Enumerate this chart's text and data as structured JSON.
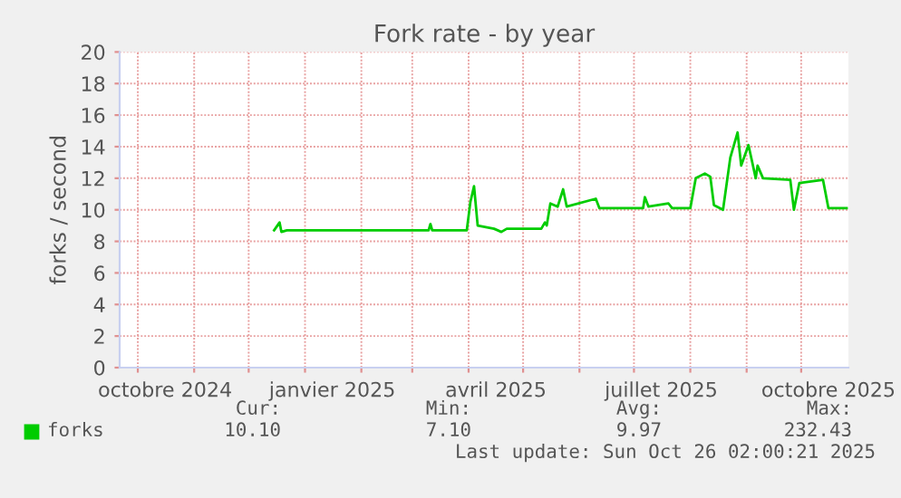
{
  "chart_data": {
    "type": "line",
    "title": "Fork rate - by year",
    "ylabel": "forks / second",
    "xlim": [
      "2024-09-21",
      "2025-10-27"
    ],
    "xticks": [
      {
        "value": "2024-10-01",
        "label": null
      },
      {
        "value": "2024-10-16",
        "label": "octobre 2024"
      },
      {
        "value": "2024-11-01",
        "label": null
      },
      {
        "value": "2024-12-01",
        "label": null
      },
      {
        "value": "2025-01-01",
        "label": null
      },
      {
        "value": "2025-01-16",
        "label": "janvier 2025"
      },
      {
        "value": "2025-02-01",
        "label": null
      },
      {
        "value": "2025-03-01",
        "label": null
      },
      {
        "value": "2025-04-01",
        "label": null
      },
      {
        "value": "2025-04-16",
        "label": "avril 2025"
      },
      {
        "value": "2025-05-01",
        "label": null
      },
      {
        "value": "2025-06-01",
        "label": null
      },
      {
        "value": "2025-07-01",
        "label": null
      },
      {
        "value": "2025-07-16",
        "label": "juillet 2025"
      },
      {
        "value": "2025-08-01",
        "label": null
      },
      {
        "value": "2025-09-01",
        "label": null
      },
      {
        "value": "2025-10-01",
        "label": null
      },
      {
        "value": "2025-10-16",
        "label": "octobre 2025"
      }
    ],
    "ylim": [
      0,
      20
    ],
    "yticks": [
      0,
      2,
      4,
      6,
      8,
      10,
      12,
      14,
      16,
      18,
      20
    ],
    "grid": true,
    "legend": "bottom left",
    "series": [
      {
        "name": "forks",
        "color": "#00cc00",
        "x": [
          "2024-12-15",
          "2024-12-18",
          "2024-12-19",
          "2024-12-22",
          "2025-01-15",
          "2025-03-10",
          "2025-03-11",
          "2025-03-12",
          "2025-03-31",
          "2025-04-02",
          "2025-04-04",
          "2025-04-06",
          "2025-04-15",
          "2025-04-19",
          "2025-04-22",
          "2025-05-11",
          "2025-05-13",
          "2025-05-14",
          "2025-05-16",
          "2025-05-20",
          "2025-05-23",
          "2025-05-25",
          "2025-06-10",
          "2025-06-12",
          "2025-07-06",
          "2025-07-07",
          "2025-07-09",
          "2025-07-20",
          "2025-07-22",
          "2025-08-01",
          "2025-08-04",
          "2025-08-09",
          "2025-08-12",
          "2025-08-14",
          "2025-08-19",
          "2025-08-23",
          "2025-08-27",
          "2025-08-29",
          "2025-09-02",
          "2025-09-06",
          "2025-09-07",
          "2025-09-10",
          "2025-09-25",
          "2025-09-27",
          "2025-09-30",
          "2025-10-13",
          "2025-10-16",
          "2025-10-26"
        ],
        "values": [
          8.7,
          9.2,
          8.6,
          8.7,
          8.7,
          8.7,
          9.1,
          8.7,
          8.7,
          10.5,
          11.5,
          9.0,
          8.8,
          8.6,
          8.8,
          8.8,
          9.2,
          9.0,
          10.4,
          10.2,
          11.3,
          10.2,
          10.7,
          10.1,
          10.1,
          10.8,
          10.2,
          10.4,
          10.1,
          10.1,
          12.0,
          12.3,
          12.1,
          10.3,
          10.0,
          13.3,
          14.9,
          12.8,
          14.1,
          12.0,
          12.8,
          12.0,
          11.9,
          10.0,
          11.7,
          11.9,
          10.1,
          10.1
        ]
      }
    ],
    "annotations": [
      "Cur:",
      "Min:",
      "Avg:",
      "Max:",
      "10.10",
      "7.10",
      "9.97",
      "232.43",
      "Last update: Sun Oct 26 02:00:21 2025"
    ]
  }
}
